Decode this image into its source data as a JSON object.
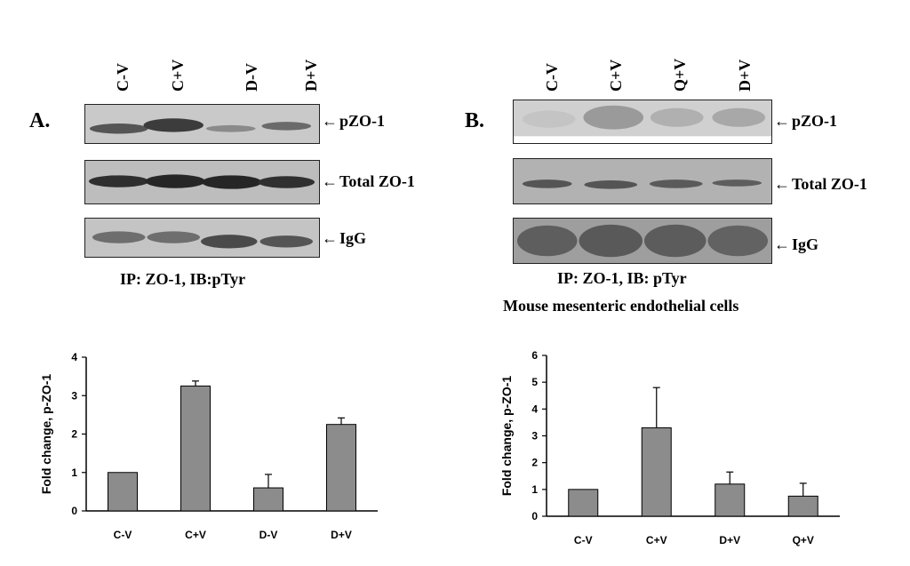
{
  "panel_a": {
    "label": "A.",
    "lanes": [
      "C-V",
      "C+V",
      "D-V",
      "D+V"
    ],
    "bands": [
      "pZO-1",
      "Total ZO-1",
      "IgG"
    ],
    "caption": "IP: ZO-1, IB:pTyr"
  },
  "panel_b": {
    "label": "B.",
    "lanes": [
      "C-V",
      "C+V",
      "Q+V",
      "D+V"
    ],
    "bands": [
      "pZO-1",
      "Total ZO-1",
      "IgG"
    ],
    "caption": "IP: ZO-1, IB: pTyr",
    "subcaption": "Mouse mesenteric endothelial cells"
  },
  "chart_data": [
    {
      "type": "bar",
      "categories": [
        "C-V",
        "C+V",
        "D-V",
        "D+V"
      ],
      "values": [
        1.0,
        3.25,
        0.6,
        2.25
      ],
      "errors": [
        0,
        0.13,
        0.35,
        0.17
      ],
      "ylabel": "Fold change, p-ZO-1",
      "xlabel": "",
      "ylim": [
        0,
        4
      ],
      "yticks": [
        0,
        1,
        2,
        3,
        4
      ],
      "bar_color": "#8c8c8c"
    },
    {
      "type": "bar",
      "categories": [
        "C-V",
        "C+V",
        "D+V",
        "Q+V"
      ],
      "values": [
        1.0,
        3.3,
        1.2,
        0.75
      ],
      "errors": [
        0,
        1.5,
        0.45,
        0.48
      ],
      "ylabel": "Fold change, p-ZO-1",
      "xlabel": "",
      "ylim": [
        0,
        6
      ],
      "yticks": [
        0,
        1,
        2,
        3,
        4,
        5,
        6
      ],
      "bar_color": "#8c8c8c"
    }
  ]
}
